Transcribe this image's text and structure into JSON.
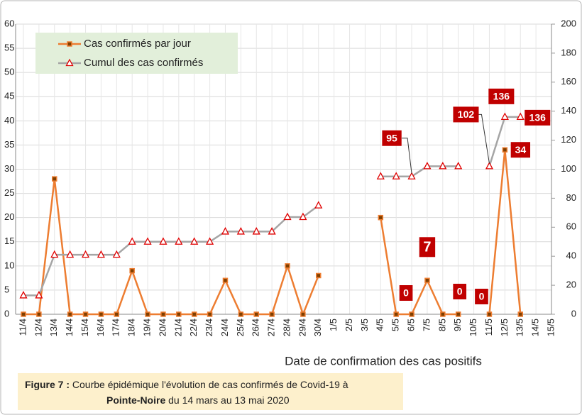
{
  "chart_data": {
    "type": "line",
    "x_label": "Date de confirmation des cas positifs",
    "caption": {
      "label": "Figure 7 :",
      "text1": " Courbe épidémique  l'évolution de cas confirmés de Covid-19 à",
      "place": "Pointe-Noire",
      "text2": " du 14 mars au 13 mai 2020"
    },
    "categories": [
      "11/4",
      "12/4",
      "13/4",
      "14/4",
      "15/4",
      "16/4",
      "17/4",
      "18/4",
      "19/4",
      "20/4",
      "21/4",
      "22/4",
      "23/4",
      "24/4",
      "25/4",
      "26/4",
      "27/4",
      "28/4",
      "29/4",
      "30/4",
      "1/5",
      "2/5",
      "3/5",
      "4/5",
      "5/5",
      "6/5",
      "7/5",
      "8/5",
      "9/5",
      "10/5",
      "11/5",
      "12/5",
      "13/5",
      "14/5",
      "15/5"
    ],
    "series": [
      {
        "name": "Cas confirmés par jour",
        "color": "#ed7d31",
        "axis": "y",
        "values": [
          0,
          0,
          28,
          0,
          0,
          0,
          0,
          9,
          0,
          0,
          0,
          0,
          0,
          7,
          0,
          0,
          0,
          10,
          0,
          8,
          null,
          null,
          null,
          20,
          0,
          0,
          7,
          0,
          0,
          null,
          0,
          34,
          0,
          null,
          null
        ],
        "value_labels": [
          null,
          null,
          null,
          null,
          null,
          null,
          null,
          null,
          null,
          null,
          null,
          null,
          null,
          null,
          null,
          null,
          null,
          null,
          null,
          null,
          null,
          null,
          null,
          null,
          null,
          "0",
          "7",
          null,
          "0",
          null,
          "0",
          "34",
          null,
          null,
          null
        ]
      },
      {
        "name": "Cumul des cas confirmés",
        "color": "#a5a5a5",
        "axis": "y2",
        "values": [
          13,
          13,
          41,
          41,
          41,
          41,
          41,
          50,
          50,
          50,
          50,
          50,
          50,
          57,
          57,
          57,
          57,
          67,
          67,
          75,
          null,
          null,
          null,
          95,
          95,
          95,
          102,
          102,
          102,
          null,
          102,
          136,
          136,
          null,
          null
        ],
        "value_labels": [
          null,
          null,
          null,
          null,
          null,
          null,
          null,
          null,
          null,
          null,
          null,
          null,
          null,
          null,
          null,
          null,
          null,
          null,
          null,
          null,
          null,
          null,
          null,
          null,
          null,
          "95",
          null,
          null,
          null,
          null,
          "102",
          "136",
          "136",
          null,
          null
        ]
      }
    ],
    "ylim": [
      0,
      60
    ],
    "yticks": [
      0,
      5,
      10,
      15,
      20,
      25,
      30,
      35,
      40,
      45,
      50,
      55,
      60
    ],
    "y2lim": [
      0,
      200
    ],
    "y2ticks": [
      0,
      20,
      40,
      60,
      80,
      100,
      120,
      140,
      160,
      180,
      200
    ],
    "grid": true
  }
}
